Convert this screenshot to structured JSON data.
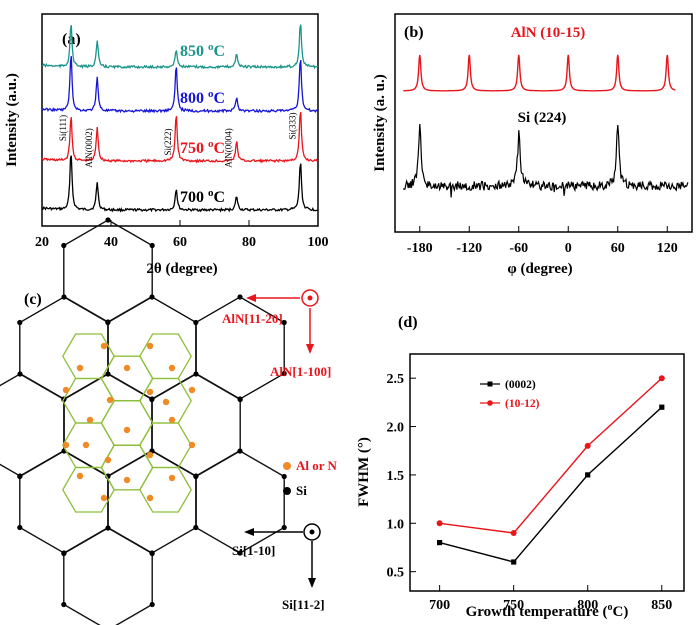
{
  "figure": {
    "panels": [
      "(a)",
      "(b)",
      "(c)",
      "(d)"
    ]
  },
  "colors": {
    "black": "#000000",
    "red": "#e8151b",
    "blue": "#1515d8",
    "teal": "#1a958c",
    "orange": "#f08a24",
    "green": "#8cbf3a"
  },
  "chart_data": [
    {
      "panel": "(a)",
      "type": "line",
      "xlabel": "2θ (degree)",
      "ylabel": "Intensity (a.u.)",
      "xlim": [
        20,
        100
      ],
      "xticks": [
        "20",
        "40",
        "60",
        "80",
        "100"
      ],
      "series": [
        {
          "name": "700 oC",
          "label": "700",
          "unit": "oC",
          "color": "#000000",
          "offset": 0
        },
        {
          "name": "750 oC",
          "label": "750",
          "unit": "oC",
          "color": "#e8151b",
          "offset": 1
        },
        {
          "name": "800 oC",
          "label": "800",
          "unit": "oC",
          "color": "#1515d8",
          "offset": 2
        },
        {
          "name": "850 oC",
          "label": "850",
          "unit": "oC",
          "color": "#1a958c",
          "offset": 3
        }
      ],
      "peaks": [
        28.4,
        36.0,
        58.9,
        76.4,
        94.9
      ],
      "annotations": [
        {
          "text": "Si(111)",
          "x": 28.4
        },
        {
          "text": "AlN(0002)",
          "x": 36.0
        },
        {
          "text": "Si(222)",
          "x": 58.9
        },
        {
          "text": "AlN(0004)",
          "x": 76.4
        },
        {
          "text": "Si(333)",
          "x": 94.9
        }
      ]
    },
    {
      "panel": "(b)",
      "type": "line",
      "xlabel": "φ (degree)",
      "ylabel": "Intensity (a. u.)",
      "xlim": [
        -210,
        150
      ],
      "xticks": [
        "-180",
        "-120",
        "-60",
        "0",
        "60",
        "120"
      ],
      "series": [
        {
          "name": "AlN (10-15)",
          "color": "#e8151b",
          "peaks": [
            -180,
            -120,
            -60,
            0,
            60,
            120
          ]
        },
        {
          "name": "Si (224)",
          "color": "#000000",
          "peaks": [
            -180,
            -60,
            60
          ]
        }
      ]
    },
    {
      "panel": "(c)",
      "type": "diagram",
      "labels": {
        "aln_11_20": "AlN[11-20]",
        "aln_1_100": "AlN[1-100]",
        "si_1_10": "Si[1-10]",
        "si_11_2": "Si[11-2]",
        "legend_al_n": "Al or N",
        "legend_si": "Si"
      }
    },
    {
      "panel": "(d)",
      "type": "line",
      "xlabel": "Growth temperature (oC)",
      "ylabel": "FWHM (°)",
      "xlim": [
        680,
        865
      ],
      "ylim": [
        0.3,
        2.75
      ],
      "categories": [
        700,
        750,
        800,
        850
      ],
      "xticks": [
        "700",
        "750",
        "800",
        "850"
      ],
      "yticks": [
        "0.5",
        "1.0",
        "1.5",
        "2.0",
        "2.5"
      ],
      "series": [
        {
          "name": "(0002)",
          "color": "#000000",
          "marker": "square",
          "values": [
            0.8,
            0.6,
            1.5,
            2.2
          ]
        },
        {
          "name": "(10-12)",
          "color": "#e8151b",
          "marker": "circle",
          "values": [
            1.0,
            0.9,
            1.8,
            2.5
          ]
        }
      ],
      "legend": "top-left"
    }
  ]
}
